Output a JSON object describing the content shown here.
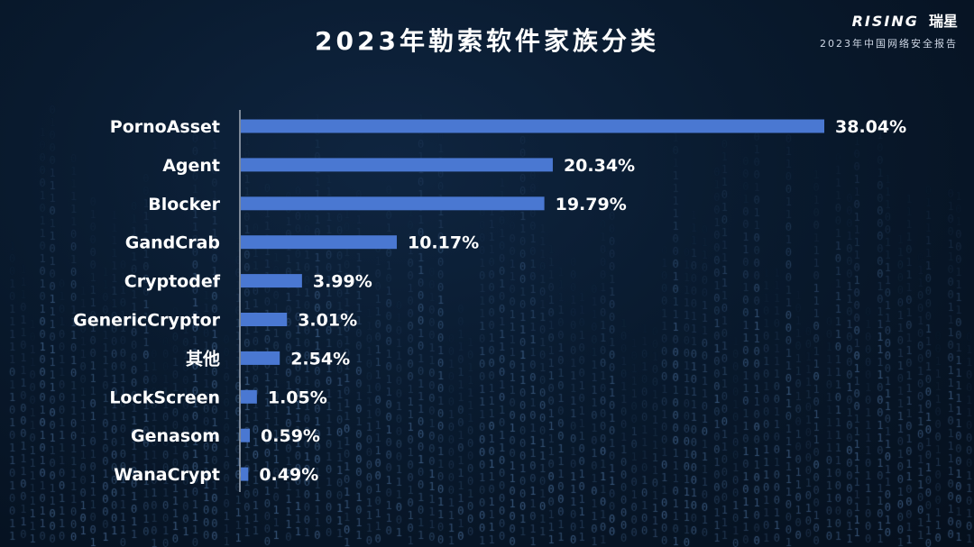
{
  "header": {
    "title": "2023年勒索软件家族分类",
    "brand_logo": "RISING",
    "brand_cn": "瑞星",
    "brand_subtitle": "2023年中国网络安全报告"
  },
  "colors": {
    "bar": "#4a78d2",
    "axis": "#c8cfd9",
    "text": "#ffffff"
  },
  "chart_data": {
    "type": "bar",
    "orientation": "horizontal",
    "title": "2023年勒索软件家族分类",
    "categories": [
      "PornoAsset",
      "Agent",
      "Blocker",
      "GandCrab",
      "Cryptodef",
      "GenericCryptor",
      "其他",
      "LockScreen",
      "Genasom",
      "WanaCrypt"
    ],
    "values": [
      38.04,
      20.34,
      19.79,
      10.17,
      3.99,
      3.01,
      2.54,
      1.05,
      0.59,
      0.49
    ],
    "value_labels": [
      "38.04%",
      "20.34%",
      "19.79%",
      "10.17%",
      "3.99%",
      "3.01%",
      "2.54%",
      "1.05%",
      "0.59%",
      "0.49%"
    ],
    "unit": "%",
    "xlim": [
      0,
      38.04
    ],
    "grid": false,
    "legend": "none"
  }
}
